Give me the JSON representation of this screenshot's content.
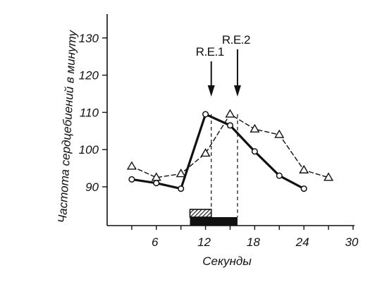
{
  "chart_data": {
    "type": "line",
    "xlabel": "Секунды",
    "ylabel": "Частота сердцебиений в минуту",
    "xlim": [
      0,
      30
    ],
    "ylim": [
      80,
      138
    ],
    "x_ticks": [
      3,
      6,
      9,
      12,
      15,
      18,
      21,
      24,
      27,
      30
    ],
    "x_tick_labels": [
      {
        "value": 6,
        "label": "6"
      },
      {
        "value": 12,
        "label": "12"
      },
      {
        "value": 18,
        "label": "18"
      },
      {
        "value": 24,
        "label": "24"
      },
      {
        "value": 30,
        "label": "30"
      }
    ],
    "y_ticks": [
      {
        "value": 90,
        "label": "90"
      },
      {
        "value": 100,
        "label": "100"
      },
      {
        "value": 110,
        "label": "110"
      },
      {
        "value": 120,
        "label": "120"
      },
      {
        "value": 130,
        "label": "130"
      }
    ],
    "grid": false,
    "series": [
      {
        "marker": "circle",
        "style": "solid-thick",
        "color": "#111111",
        "points": [
          [
            3,
            92
          ],
          [
            6,
            91
          ],
          [
            9,
            89.5
          ],
          [
            12,
            109.5
          ],
          [
            15,
            106.5
          ],
          [
            18,
            99.5
          ],
          [
            21,
            93
          ],
          [
            24,
            89.5
          ]
        ]
      },
      {
        "marker": "triangle",
        "style": "dashed",
        "color": "#111111",
        "points": [
          [
            3,
            95.5
          ],
          [
            6,
            92.5
          ],
          [
            9,
            93.5
          ],
          [
            12,
            99
          ],
          [
            15,
            109.5
          ],
          [
            18,
            105.5
          ],
          [
            21,
            104
          ],
          [
            24,
            94.5
          ],
          [
            27,
            92.5
          ]
        ]
      }
    ],
    "annotations": [
      {
        "label": "R.E.1",
        "x": 12.7
      },
      {
        "label": "R.E.2",
        "x": 15.9
      }
    ],
    "stimulus_bars": [
      {
        "x_start": 10.1,
        "x_end": 12.7,
        "pattern": "hatched"
      },
      {
        "x_start": 10.1,
        "x_end": 15.9,
        "pattern": "solid"
      }
    ]
  }
}
